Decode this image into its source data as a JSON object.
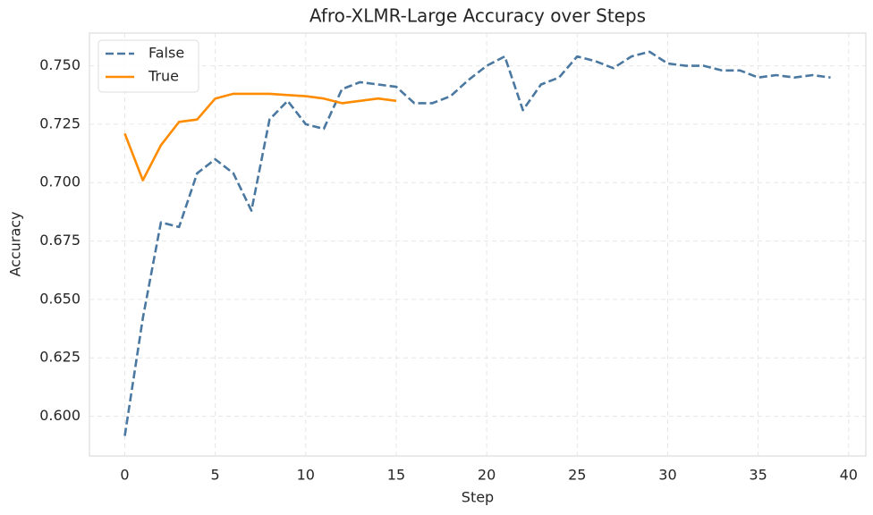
{
  "chart_data": {
    "type": "line",
    "title": "Afro-XLMR-Large Accuracy over Steps",
    "x_label": "Step",
    "y_label": "Accuracy",
    "x": [
      0,
      1,
      2,
      3,
      4,
      5,
      6,
      7,
      8,
      9,
      10,
      11,
      12,
      13,
      14,
      15,
      16,
      17,
      18,
      19,
      20,
      21,
      22,
      23,
      24,
      25,
      26,
      27,
      28,
      29,
      30,
      31,
      32,
      33,
      34,
      35,
      36,
      37,
      38,
      39
    ],
    "series": [
      {
        "name": "False",
        "color": "#4a78a0",
        "dash": true,
        "values": [
          0.5916,
          0.642,
          0.683,
          0.681,
          0.704,
          0.71,
          0.704,
          0.688,
          0.727,
          0.735,
          0.725,
          0.723,
          0.74,
          0.743,
          0.742,
          0.741,
          0.734,
          0.734,
          0.737,
          0.744,
          0.75,
          0.754,
          0.731,
          0.742,
          0.745,
          0.754,
          0.752,
          0.749,
          0.754,
          0.756,
          0.751,
          0.75,
          0.75,
          0.748,
          0.748,
          0.745,
          0.746,
          0.745,
          0.746,
          0.745
        ]
      },
      {
        "name": "True",
        "color": "#ff8c00",
        "dash": false,
        "values": [
          0.721,
          0.701,
          0.716,
          0.726,
          0.727,
          0.736,
          0.738,
          0.738,
          0.738,
          0.7375,
          0.737,
          0.736,
          0.734,
          0.735,
          0.736,
          0.735,
          null,
          null,
          null,
          null,
          null,
          null,
          null,
          null,
          null,
          null,
          null,
          null,
          null,
          null,
          null,
          null,
          null,
          null,
          null,
          null,
          null,
          null,
          null,
          null
        ]
      }
    ],
    "xlim": [
      -1.95,
      40.95
    ],
    "ylim": [
      0.583,
      0.764
    ],
    "xticks": [
      0,
      5,
      10,
      15,
      20,
      25,
      30,
      35,
      40
    ],
    "yticks": [
      {
        "value": 0.6,
        "label": "0.600"
      },
      {
        "value": 0.625,
        "label": "0.625"
      },
      {
        "value": 0.65,
        "label": "0.650"
      },
      {
        "value": 0.675,
        "label": "0.675"
      },
      {
        "value": 0.7,
        "label": "0.700"
      },
      {
        "value": 0.725,
        "label": "0.725"
      },
      {
        "value": 0.75,
        "label": "0.750"
      }
    ],
    "grid": true,
    "legend": "upper left"
  }
}
